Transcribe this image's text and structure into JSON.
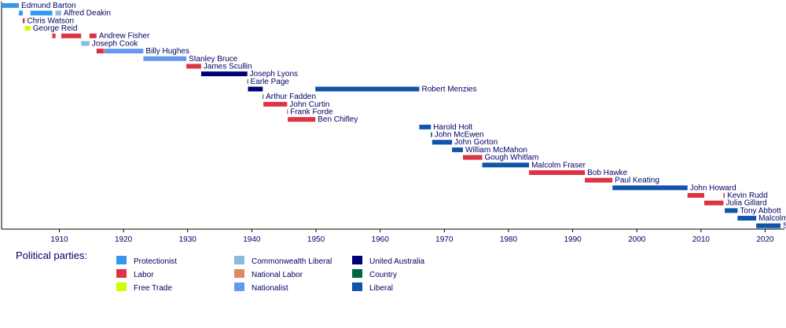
{
  "chart_data": {
    "type": "timeline",
    "title": "",
    "xlabel": "",
    "ylabel": "",
    "xlim": [
      1901,
      2023
    ],
    "x_ticks": [
      1910,
      1920,
      1930,
      1940,
      1950,
      1960,
      1970,
      1980,
      1990,
      2000,
      2010,
      2020
    ],
    "grid": false,
    "legend_title": "Political parties:",
    "legend": [
      {
        "party": "Protectionist",
        "color": "#3399ee"
      },
      {
        "party": "Labor",
        "color": "#dd3344"
      },
      {
        "party": "Free Trade",
        "color": "#ccff00"
      },
      {
        "party": "Commonwealth Liberal",
        "color": "#88bbdd"
      },
      {
        "party": "National Labor",
        "color": "#dd8866"
      },
      {
        "party": "Nationalist",
        "color": "#6699ee"
      },
      {
        "party": "United Australia",
        "color": "#000077"
      },
      {
        "party": "Country",
        "color": "#006644"
      },
      {
        "party": "Liberal",
        "color": "#1155aa"
      }
    ],
    "prime_ministers": [
      {
        "name": "Edmund Barton",
        "terms": [
          {
            "start": 1901.0,
            "end": 1903.7,
            "party": "Protectionist"
          }
        ]
      },
      {
        "name": "Alfred Deakin",
        "terms": [
          {
            "start": 1903.7,
            "end": 1904.3,
            "party": "Protectionist"
          },
          {
            "start": 1905.5,
            "end": 1908.9,
            "party": "Protectionist"
          },
          {
            "start": 1909.4,
            "end": 1910.3,
            "party": "Commonwealth Liberal"
          }
        ]
      },
      {
        "name": "Chris Watson",
        "terms": [
          {
            "start": 1904.3,
            "end": 1904.6,
            "party": "Labor"
          }
        ]
      },
      {
        "name": "George Reid",
        "terms": [
          {
            "start": 1904.6,
            "end": 1905.5,
            "party": "Free Trade"
          }
        ]
      },
      {
        "name": "Andrew Fisher",
        "terms": [
          {
            "start": 1908.9,
            "end": 1909.4,
            "party": "Labor"
          },
          {
            "start": 1910.3,
            "end": 1913.4,
            "party": "Labor"
          },
          {
            "start": 1914.7,
            "end": 1915.8,
            "party": "Labor"
          }
        ]
      },
      {
        "name": "Joseph Cook",
        "terms": [
          {
            "start": 1913.4,
            "end": 1914.7,
            "party": "Commonwealth Liberal"
          }
        ]
      },
      {
        "name": "Billy Hughes",
        "terms": [
          {
            "start": 1915.8,
            "end": 1916.9,
            "party": "Labor"
          },
          {
            "start": 1916.9,
            "end": 1917.1,
            "party": "National Labor"
          },
          {
            "start": 1917.1,
            "end": 1923.1,
            "party": "Nationalist"
          }
        ]
      },
      {
        "name": "Stanley Bruce",
        "terms": [
          {
            "start": 1923.1,
            "end": 1929.8,
            "party": "Nationalist"
          }
        ]
      },
      {
        "name": "James Scullin",
        "terms": [
          {
            "start": 1929.8,
            "end": 1932.1,
            "party": "Labor"
          }
        ]
      },
      {
        "name": "Joseph Lyons",
        "terms": [
          {
            "start": 1932.1,
            "end": 1939.3,
            "party": "United Australia"
          }
        ]
      },
      {
        "name": "Earle Page",
        "terms": [
          {
            "start": 1939.3,
            "end": 1939.4,
            "party": "Country"
          }
        ]
      },
      {
        "name": "Robert Menzies",
        "terms": [
          {
            "start": 1939.4,
            "end": 1941.7,
            "party": "United Australia"
          },
          {
            "start": 1949.9,
            "end": 1966.1,
            "party": "Liberal"
          }
        ]
      },
      {
        "name": "Arthur Fadden",
        "terms": [
          {
            "start": 1941.7,
            "end": 1941.8,
            "party": "Country"
          }
        ]
      },
      {
        "name": "John Curtin",
        "terms": [
          {
            "start": 1941.8,
            "end": 1945.5,
            "party": "Labor"
          }
        ]
      },
      {
        "name": "Frank Forde",
        "terms": [
          {
            "start": 1945.5,
            "end": 1945.6,
            "party": "Labor"
          }
        ]
      },
      {
        "name": "Ben Chifley",
        "terms": [
          {
            "start": 1945.6,
            "end": 1949.9,
            "party": "Labor"
          }
        ]
      },
      {
        "name": "Harold Holt",
        "terms": [
          {
            "start": 1966.1,
            "end": 1967.9,
            "party": "Liberal"
          }
        ]
      },
      {
        "name": "John McEwen",
        "terms": [
          {
            "start": 1967.9,
            "end": 1968.1,
            "party": "Country"
          }
        ]
      },
      {
        "name": "John Gorton",
        "terms": [
          {
            "start": 1968.1,
            "end": 1971.2,
            "party": "Liberal"
          }
        ]
      },
      {
        "name": "William McMahon",
        "terms": [
          {
            "start": 1971.2,
            "end": 1972.9,
            "party": "Liberal"
          }
        ]
      },
      {
        "name": "Gough Whitlam",
        "terms": [
          {
            "start": 1972.9,
            "end": 1975.9,
            "party": "Labor"
          }
        ]
      },
      {
        "name": "Malcolm Fraser",
        "terms": [
          {
            "start": 1975.9,
            "end": 1983.2,
            "party": "Liberal"
          }
        ]
      },
      {
        "name": "Bob Hawke",
        "terms": [
          {
            "start": 1983.2,
            "end": 1991.9,
            "party": "Labor"
          }
        ]
      },
      {
        "name": "Paul Keating",
        "terms": [
          {
            "start": 1991.9,
            "end": 1996.2,
            "party": "Labor"
          }
        ]
      },
      {
        "name": "John Howard",
        "terms": [
          {
            "start": 1996.2,
            "end": 2007.9,
            "party": "Liberal"
          }
        ]
      },
      {
        "name": "Kevin Rudd",
        "terms": [
          {
            "start": 2007.9,
            "end": 2010.5,
            "party": "Labor"
          },
          {
            "start": 2013.5,
            "end": 2013.7,
            "party": "Labor"
          }
        ]
      },
      {
        "name": "Julia Gillard",
        "terms": [
          {
            "start": 2010.5,
            "end": 2013.5,
            "party": "Labor"
          }
        ]
      },
      {
        "name": "Tony Abbott",
        "terms": [
          {
            "start": 2013.7,
            "end": 2015.7,
            "party": "Liberal"
          }
        ]
      },
      {
        "name": "Malcolm Turnbull",
        "terms": [
          {
            "start": 2015.7,
            "end": 2018.6,
            "party": "Liberal"
          }
        ]
      },
      {
        "name": "Scott Morrison",
        "terms": [
          {
            "start": 2018.6,
            "end": 2022.4,
            "party": "Liberal"
          }
        ]
      }
    ]
  }
}
